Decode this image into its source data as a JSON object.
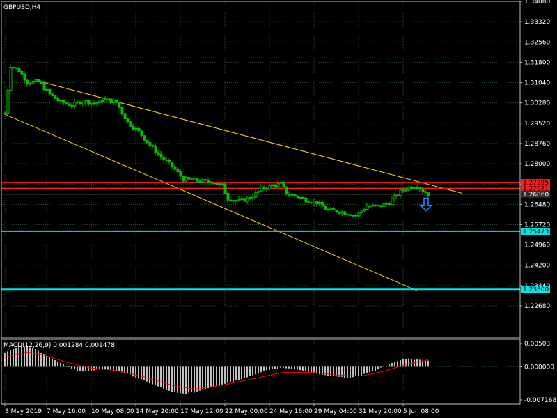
{
  "window": {
    "title": "GBPUSD,H4"
  },
  "colors": {
    "background": "#000000",
    "grid": "#2e4a2e",
    "frame": "#c0c0c0",
    "bull": "#00c000",
    "bear": "#00c000",
    "trendline": "#ffd700",
    "resistance": "#ff1a1a",
    "support": "#00e5e5",
    "bid": "#808080",
    "macd_hist": "#c0c0c0",
    "macd_signal": "#ff0000",
    "arrow": "#1e90ff"
  },
  "price_axis": {
    "max": 1.3408,
    "min": 1.2148,
    "ticks": [
      "1.34080",
      "1.33320",
      "1.32560",
      "1.31800",
      "1.31040",
      "1.30280",
      "1.29520",
      "1.28760",
      "1.28000",
      "1.27240",
      "1.26480",
      "1.25720",
      "1.24960",
      "1.24200",
      "1.23440",
      "1.22680"
    ]
  },
  "levels": {
    "resistance_1": {
      "value": 1.27295,
      "label": "1.27295"
    },
    "resistance_2": {
      "value": 1.27071,
      "label": "1.27071"
    },
    "bid": {
      "value": 1.2686,
      "label": "1.26860"
    },
    "support_1": {
      "value": 1.25473,
      "label": "1.25473"
    },
    "support_2": {
      "value": 1.233,
      "label": "1.23300"
    }
  },
  "trendlines": [
    {
      "from": {
        "bar": 12,
        "price": 1.311
      },
      "to": {
        "bar": 164,
        "price": 1.269
      }
    },
    {
      "from": {
        "bar": 0,
        "price": 1.2985
      },
      "to": {
        "bar": 148,
        "price": 1.2325
      }
    }
  ],
  "time_axis": {
    "labels": [
      {
        "bar": 0,
        "text": "3 May 2019"
      },
      {
        "bar": 15,
        "text": "7 May 16:00"
      },
      {
        "bar": 31,
        "text": "10 May 08:00"
      },
      {
        "bar": 47,
        "text": "14 May 20:00"
      },
      {
        "bar": 63,
        "text": "17 May 12:00"
      },
      {
        "bar": 79,
        "text": "22 May 00:00"
      },
      {
        "bar": 95,
        "text": "24 May 16:00"
      },
      {
        "bar": 111,
        "text": "29 May 04:00"
      },
      {
        "bar": 127,
        "text": "31 May 20:00"
      },
      {
        "bar": 143,
        "text": "5 Jun 08:00"
      }
    ]
  },
  "price_path": [
    [
      0,
      1.299
    ],
    [
      2,
      1.3168
    ],
    [
      5,
      1.315
    ],
    [
      8,
      1.3105
    ],
    [
      12,
      1.3108
    ],
    [
      16,
      1.306
    ],
    [
      20,
      1.303
    ],
    [
      24,
      1.302
    ],
    [
      28,
      1.3035
    ],
    [
      32,
      1.3025
    ],
    [
      36,
      1.304
    ],
    [
      40,
      1.303
    ],
    [
      44,
      1.2955
    ],
    [
      48,
      1.292
    ],
    [
      52,
      1.287
    ],
    [
      56,
      1.2825
    ],
    [
      60,
      1.279
    ],
    [
      64,
      1.2742
    ],
    [
      68,
      1.2738
    ],
    [
      72,
      1.2733
    ],
    [
      74,
      1.2735
    ],
    [
      76,
      1.2725
    ],
    [
      78,
      1.2718
    ],
    [
      80,
      1.267
    ],
    [
      84,
      1.266
    ],
    [
      88,
      1.2672
    ],
    [
      92,
      1.2705
    ],
    [
      96,
      1.2718
    ],
    [
      99,
      1.2725
    ],
    [
      101,
      1.269
    ],
    [
      104,
      1.268
    ],
    [
      108,
      1.2665
    ],
    [
      112,
      1.2655
    ],
    [
      116,
      1.2625
    ],
    [
      120,
      1.2622
    ],
    [
      124,
      1.2612
    ],
    [
      126,
      1.2605
    ],
    [
      130,
      1.2642
    ],
    [
      134,
      1.264
    ],
    [
      138,
      1.2655
    ],
    [
      142,
      1.2695
    ],
    [
      145,
      1.2712
    ],
    [
      148,
      1.2718
    ],
    [
      150,
      1.27
    ],
    [
      152,
      1.2686
    ]
  ],
  "arrow": {
    "bar": 151,
    "price": 1.265,
    "icon": "down-arrow-icon"
  },
  "macd": {
    "label": "MACD(12,26,9) 0.001284 0.001478",
    "max": 0.00503,
    "min": -0.007168,
    "ticks": [
      "0.00503",
      "0.000000",
      "-0.007168"
    ],
    "hist_path": [
      [
        0,
        0.003
      ],
      [
        4,
        0.0042
      ],
      [
        8,
        0.0045
      ],
      [
        12,
        0.0035
      ],
      [
        16,
        0.002
      ],
      [
        20,
        0.0008
      ],
      [
        24,
        -0.0005
      ],
      [
        28,
        -0.001
      ],
      [
        32,
        -0.0008
      ],
      [
        36,
        -0.0005
      ],
      [
        40,
        -0.0008
      ],
      [
        44,
        -0.0015
      ],
      [
        48,
        -0.0025
      ],
      [
        52,
        -0.0035
      ],
      [
        56,
        -0.0045
      ],
      [
        60,
        -0.0055
      ],
      [
        64,
        -0.0058
      ],
      [
        68,
        -0.0055
      ],
      [
        72,
        -0.0048
      ],
      [
        76,
        -0.004
      ],
      [
        80,
        -0.0035
      ],
      [
        84,
        -0.0028
      ],
      [
        88,
        -0.002
      ],
      [
        92,
        -0.0012
      ],
      [
        96,
        -0.0005
      ],
      [
        100,
        -0.0002
      ],
      [
        104,
        -0.0005
      ],
      [
        108,
        -0.001
      ],
      [
        112,
        -0.0015
      ],
      [
        116,
        -0.002
      ],
      [
        120,
        -0.0022
      ],
      [
        124,
        -0.0025
      ],
      [
        128,
        -0.0018
      ],
      [
        132,
        -0.001
      ],
      [
        136,
        0.0
      ],
      [
        140,
        0.001
      ],
      [
        144,
        0.0018
      ],
      [
        148,
        0.0015
      ],
      [
        152,
        0.0013
      ]
    ],
    "signal_path": [
      [
        0,
        0.002
      ],
      [
        8,
        0.0032
      ],
      [
        14,
        0.0025
      ],
      [
        22,
        0.001
      ],
      [
        30,
        -0.0002
      ],
      [
        40,
        -0.0008
      ],
      [
        50,
        -0.0022
      ],
      [
        60,
        -0.004
      ],
      [
        68,
        -0.0048
      ],
      [
        78,
        -0.004
      ],
      [
        90,
        -0.0025
      ],
      [
        100,
        -0.0012
      ],
      [
        110,
        -0.0012
      ],
      [
        120,
        -0.0018
      ],
      [
        128,
        -0.002
      ],
      [
        136,
        -0.001
      ],
      [
        144,
        0.0005
      ],
      [
        152,
        0.0015
      ]
    ]
  }
}
